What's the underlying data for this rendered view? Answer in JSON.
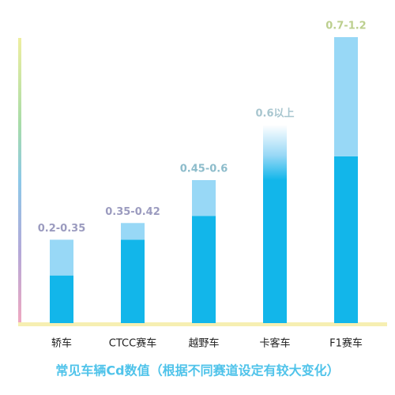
{
  "chart_data": {
    "type": "range-bar",
    "title": "常见车辆Cd数值（根据不同赛道设定有较大变化）",
    "categories": [
      "轿车",
      "CTCC赛车",
      "越野车",
      "卡客车",
      "F1赛车"
    ],
    "low": [
      0.2,
      0.35,
      0.45,
      0.6,
      0.7
    ],
    "high": [
      0.35,
      0.42,
      0.6,
      null,
      1.2
    ],
    "value_labels": [
      "0.2-0.35",
      "0.35-0.42",
      "0.45-0.6",
      "0.6以上",
      "0.7-1.2"
    ],
    "label_colors": [
      "#9b9bbf",
      "#9b9bbf",
      "#8dbccb",
      "#a8c6cf",
      "#bccf8e"
    ],
    "low_color": "#12b6ea",
    "high_color": "#98d8f6",
    "ylim": [
      0,
      1.2
    ]
  }
}
